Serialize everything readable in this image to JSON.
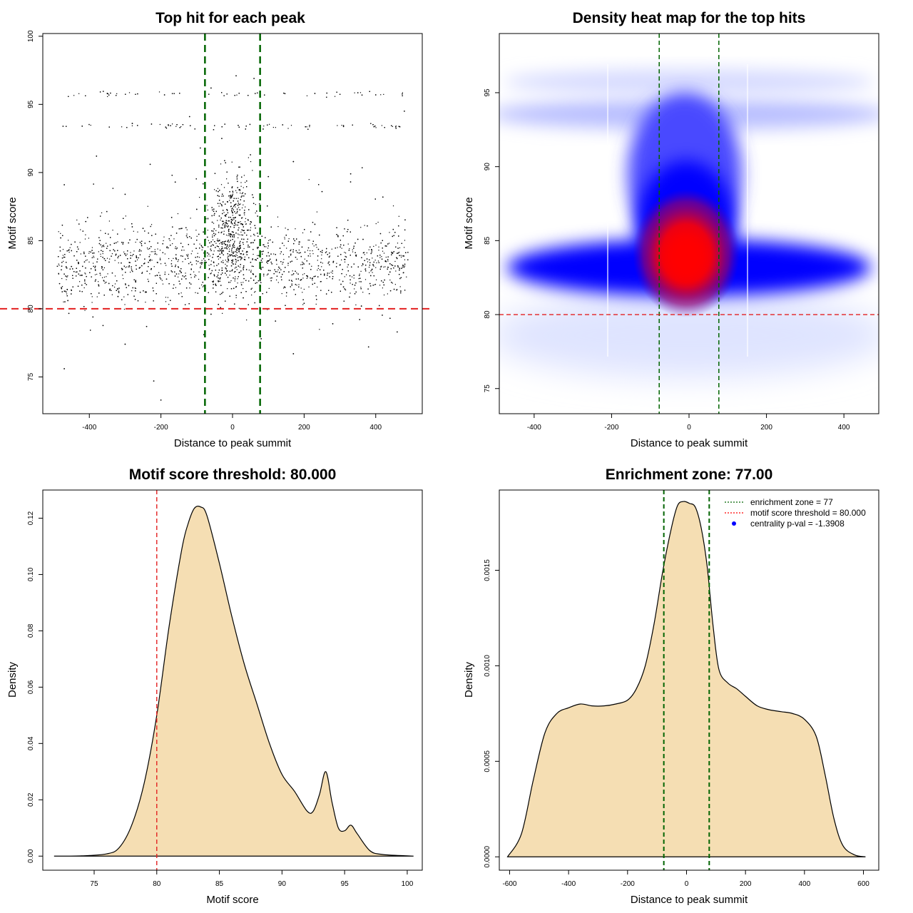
{
  "chart_data": [
    {
      "type": "scatter",
      "title": "Top hit for each peak",
      "xlabel": "Distance to peak summit",
      "ylabel": "Motif score",
      "xlim": [
        -530,
        530
      ],
      "ylim": [
        72.3,
        100.2
      ],
      "xticks": [
        "-400",
        "-200",
        "0",
        "200",
        "400"
      ],
      "xtick_values": [
        -400,
        -200,
        0,
        200,
        400
      ],
      "yticks": [
        "75",
        "80",
        "85",
        "90",
        "95",
        "100"
      ],
      "ytick_values": [
        75,
        80,
        85,
        90,
        95,
        100
      ],
      "vlines": [
        -77,
        77
      ],
      "hline": 80,
      "points": [
        [
          -420,
          93.4
        ],
        [
          -350,
          95.8
        ],
        [
          -280,
          93.6
        ],
        [
          -190,
          95.7
        ],
        [
          -120,
          94.1
        ],
        [
          -60,
          96.2
        ],
        [
          10,
          97.1
        ],
        [
          60,
          96.9
        ],
        [
          140,
          93.5
        ],
        [
          230,
          95.8
        ],
        [
          310,
          93.4
        ],
        [
          400,
          95.7
        ],
        [
          480,
          94.5
        ],
        [
          -470,
          89.1
        ],
        [
          -380,
          91.2
        ],
        [
          -300,
          88.4
        ],
        [
          -230,
          90.6
        ],
        [
          -160,
          89.3
        ],
        [
          -90,
          91.8
        ],
        [
          -30,
          92.5
        ],
        [
          20,
          90.4
        ],
        [
          50,
          91.3
        ],
        [
          100,
          89.7
        ],
        [
          170,
          90.8
        ],
        [
          250,
          88.6
        ],
        [
          330,
          89.9
        ],
        [
          420,
          88.2
        ],
        [
          -480,
          85.2
        ],
        [
          -450,
          83.1
        ],
        [
          -410,
          86.4
        ],
        [
          -370,
          82.6
        ],
        [
          -330,
          84.8
        ],
        [
          -290,
          81.7
        ],
        [
          -250,
          85.9
        ],
        [
          -210,
          83.4
        ],
        [
          -170,
          86.7
        ],
        [
          -130,
          82.2
        ],
        [
          -100,
          87.3
        ],
        [
          -70,
          84.1
        ],
        [
          -40,
          88.6
        ],
        [
          -10,
          85.5
        ],
        [
          15,
          87.9
        ],
        [
          40,
          84.2
        ],
        [
          70,
          86.8
        ],
        [
          110,
          83.3
        ],
        [
          150,
          85.4
        ],
        [
          190,
          82.1
        ],
        [
          230,
          86.2
        ],
        [
          270,
          83.8
        ],
        [
          310,
          81.6
        ],
        [
          350,
          85.1
        ],
        [
          390,
          82.9
        ],
        [
          430,
          84.6
        ],
        [
          470,
          81.3
        ],
        [
          -460,
          80.6
        ],
        [
          -390,
          79.4
        ],
        [
          -320,
          80.9
        ],
        [
          -240,
          78.7
        ],
        [
          -150,
          81.1
        ],
        [
          -60,
          79.6
        ],
        [
          30,
          80.8
        ],
        [
          120,
          79.1
        ],
        [
          200,
          80.4
        ],
        [
          280,
          78.9
        ],
        [
          360,
          80.2
        ],
        [
          440,
          79.3
        ],
        [
          -470,
          75.6
        ],
        [
          -300,
          77.4
        ],
        [
          -220,
          74.7
        ],
        [
          -200,
          73.3
        ],
        [
          -80,
          78.1
        ],
        [
          80,
          77.8
        ],
        [
          170,
          76.7
        ],
        [
          380,
          77.2
        ],
        [
          460,
          78.3
        ]
      ]
    },
    {
      "type": "heatmap",
      "title": "Density heat map for the top hits",
      "xlabel": "Distance to peak summit",
      "ylabel": "Motif score",
      "xlim": [
        -490,
        490
      ],
      "ylim": [
        73.3,
        99.0
      ],
      "xticks": [
        "-400",
        "-200",
        "0",
        "200",
        "400"
      ],
      "xtick_values": [
        -400,
        -200,
        0,
        200,
        400
      ],
      "yticks": [
        "75",
        "80",
        "85",
        "90",
        "95"
      ],
      "ytick_values": [
        75,
        80,
        85,
        90,
        95
      ],
      "vlines": [
        -77,
        77
      ],
      "hline": 80,
      "hot_spot": [
        0,
        83.8
      ]
    },
    {
      "type": "area",
      "title": "Motif score threshold: 80.000",
      "xlabel": "Motif score",
      "ylabel": "Density",
      "xlim": [
        70.9,
        101.2
      ],
      "ylim": [
        -0.005,
        0.13
      ],
      "xticks": [
        "75",
        "80",
        "85",
        "90",
        "95",
        "100"
      ],
      "xtick_values": [
        75,
        80,
        85,
        90,
        95,
        100
      ],
      "yticks": [
        "0.00",
        "0.02",
        "0.04",
        "0.06",
        "0.08",
        "0.10",
        "0.12"
      ],
      "ytick_values": [
        0,
        0.02,
        0.04,
        0.06,
        0.08,
        0.1,
        0.12
      ],
      "vlines": [
        80
      ],
      "x": [
        71.8,
        74,
        76,
        77,
        78,
        79,
        80,
        81,
        82,
        82.5,
        83,
        83.5,
        84,
        85,
        86,
        87,
        88,
        89,
        90,
        91,
        92,
        92.5,
        93,
        93.5,
        94,
        94.5,
        95,
        95.5,
        96,
        97,
        98,
        100,
        100.5
      ],
      "y": [
        0,
        0.0001,
        0.0008,
        0.003,
        0.011,
        0.026,
        0.05,
        0.082,
        0.109,
        0.118,
        0.1235,
        0.124,
        0.121,
        0.104,
        0.085,
        0.068,
        0.054,
        0.04,
        0.029,
        0.023,
        0.016,
        0.016,
        0.022,
        0.03,
        0.019,
        0.01,
        0.009,
        0.011,
        0.008,
        0.002,
        0.0006,
        0.0001,
        0
      ]
    },
    {
      "type": "area",
      "title": "Enrichment zone: 77.00",
      "xlabel": "Distance to peak summit",
      "ylabel": "Density",
      "xlim": [
        -635,
        652
      ],
      "ylim": [
        -7e-05,
        0.00192
      ],
      "xticks": [
        "-600",
        "-400",
        "-200",
        "0",
        "200",
        "400",
        "600"
      ],
      "xtick_values": [
        -600,
        -400,
        -200,
        0,
        200,
        400,
        600
      ],
      "yticks": [
        "0.0000",
        "0.0005",
        "0.0010",
        "0.0015"
      ],
      "ytick_values": [
        0,
        0.0005,
        0.001,
        0.0015
      ],
      "vlines": [
        -77,
        77
      ],
      "x": [
        -607,
        -560,
        -520,
        -480,
        -440,
        -400,
        -360,
        -320,
        -280,
        -240,
        -200,
        -170,
        -140,
        -110,
        -80,
        -50,
        -30,
        -10,
        10,
        30,
        50,
        70,
        90,
        110,
        140,
        170,
        200,
        240,
        280,
        320,
        360,
        400,
        440,
        470,
        500,
        530,
        570,
        607
      ],
      "y": [
        0,
        0.00012,
        0.0004,
        0.00065,
        0.00075,
        0.00078,
        0.0008,
        0.00079,
        0.00079,
        0.0008,
        0.00082,
        0.00088,
        0.001,
        0.00122,
        0.0015,
        0.00173,
        0.00184,
        0.00186,
        0.00185,
        0.00183,
        0.00172,
        0.00152,
        0.00121,
        0.00098,
        0.00091,
        0.00088,
        0.00084,
        0.00079,
        0.00077,
        0.00076,
        0.00075,
        0.00072,
        0.00063,
        0.00043,
        0.0002,
        6e-05,
        1e-05,
        0
      ],
      "legend": [
        {
          "label": "enrichment zone = 77",
          "color": "#006400",
          "style": "dotted"
        },
        {
          "label": "motif score threshold = 80.000",
          "color": "#ff0000",
          "style": "dotted"
        },
        {
          "label": "centrality p-val = -1.3908",
          "color": "#0000ff",
          "style": "point"
        }
      ]
    }
  ],
  "colors": {
    "green": "#006400",
    "red": "#e32020",
    "fill": "#f5deb3",
    "blue": "#0000ff",
    "hot": "#ff0000"
  }
}
